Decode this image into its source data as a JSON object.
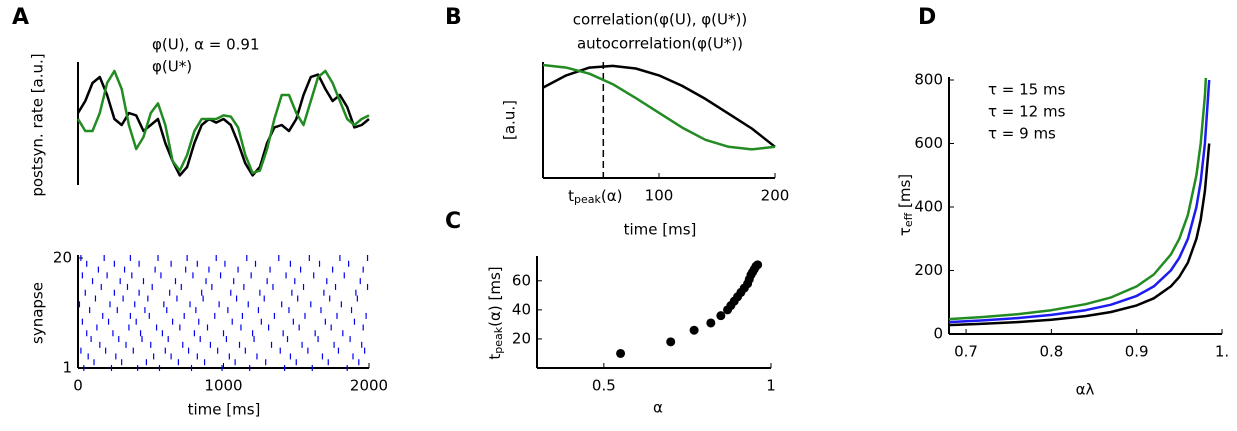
{
  "chart_data": [
    {
      "type": "line",
      "panel_label": "A",
      "ylabel": "postsyn. rate [a.u.]",
      "x": [
        0,
        50,
        100,
        150,
        200,
        250,
        300,
        350,
        400,
        450,
        500,
        550,
        600,
        650,
        700,
        750,
        800,
        850,
        900,
        950,
        1000,
        1050,
        1100,
        1150,
        1200,
        1250,
        1300,
        1350,
        1400,
        1450,
        1500,
        1550,
        1600,
        1650,
        1700,
        1750,
        1800,
        1850,
        1900,
        1950,
        2000
      ],
      "xlim": [
        0,
        2000
      ],
      "ylim": [
        0,
        100
      ],
      "series": [
        {
          "name": "φ(U), α = 0.91",
          "color": "#000000",
          "values": [
            60,
            70,
            85,
            90,
            75,
            55,
            50,
            60,
            58,
            45,
            50,
            55,
            35,
            20,
            8,
            15,
            35,
            50,
            55,
            52,
            55,
            50,
            35,
            18,
            8,
            15,
            35,
            48,
            50,
            45,
            55,
            75,
            90,
            92,
            80,
            70,
            75,
            65,
            48,
            50,
            55
          ]
        },
        {
          "name": "φ(U*)",
          "color": "#228b22",
          "values": [
            55,
            45,
            45,
            60,
            85,
            95,
            80,
            50,
            30,
            40,
            60,
            68,
            50,
            20,
            12,
            25,
            45,
            55,
            55,
            55,
            58,
            57,
            48,
            25,
            10,
            12,
            30,
            55,
            75,
            75,
            60,
            50,
            70,
            90,
            95,
            85,
            70,
            55,
            50,
            55,
            58
          ]
        }
      ]
    },
    {
      "type": "raster",
      "ylabel": "synapse",
      "xlabel": "time [ms]",
      "xlim": [
        0,
        2000
      ],
      "xticks": [
        0,
        1000,
        2000
      ],
      "ylim": [
        1,
        20
      ],
      "yticks": [
        1,
        20
      ],
      "color": "#0000ee",
      "rows": [
        [
          40,
          230,
          410,
          560,
          780,
          990,
          1180,
          1420,
          1610,
          1850
        ],
        [
          110,
          300,
          470,
          690,
          870,
          1080,
          1290,
          1500,
          1720,
          1930
        ],
        [
          70,
          260,
          520,
          640,
          820,
          1040,
          1230,
          1460,
          1680,
          1890
        ],
        [
          20,
          190,
          380,
          600,
          760,
          960,
          1150,
          1390,
          1580,
          1790,
          1970
        ],
        [
          150,
          330,
          500,
          720,
          910,
          1110,
          1330,
          1540,
          1760,
          1950
        ],
        [
          90,
          280,
          440,
          620,
          840,
          1020,
          1210,
          1440,
          1650,
          1870
        ],
        [
          60,
          240,
          430,
          580,
          800,
          1000,
          1200,
          1410,
          1630,
          1820
        ],
        [
          130,
          350,
          540,
          700,
          890,
          1120,
          1310,
          1520,
          1740,
          1960
        ],
        [
          30,
          210,
          400,
          650,
          830,
          1060,
          1260,
          1480,
          1700,
          1900
        ],
        [
          170,
          360,
          490,
          730,
          940,
          1130,
          1350,
          1560,
          1780,
          1980
        ],
        [
          80,
          270,
          460,
          610,
          810,
          1030,
          1240,
          1450,
          1670,
          1880
        ],
        [
          10,
          220,
          390,
          590,
          770,
          970,
          1170,
          1400,
          1600,
          1810
        ],
        [
          120,
          310,
          480,
          680,
          860,
          1090,
          1280,
          1510,
          1730,
          1920
        ],
        [
          50,
          250,
          420,
          630,
          850,
          1050,
          1250,
          1470,
          1690,
          1910
        ],
        [
          160,
          340,
          510,
          710,
          920,
          1140,
          1340,
          1550,
          1770,
          1990
        ],
        [
          100,
          290,
          450,
          670,
          880,
          1070,
          1300,
          1490,
          1710,
          1940
        ],
        [
          30,
          200,
          370,
          570,
          790,
          980,
          1190,
          1430,
          1620,
          1830
        ],
        [
          140,
          320,
          530,
          740,
          900,
          1100,
          1320,
          1530,
          1750,
          1960
        ],
        [
          60,
          250,
          420,
          640,
          820,
          1010,
          1220,
          1460,
          1660,
          1860
        ],
        [
          20,
          180,
          360,
          550,
          750,
          950,
          1160,
          1380,
          1590,
          1800,
          1990
        ]
      ]
    },
    {
      "type": "line",
      "panel_label": "B",
      "ylabel": "[a.u.]",
      "xlabel": "time [ms]",
      "x": [
        0,
        20,
        40,
        60,
        80,
        100,
        120,
        140,
        160,
        180,
        200
      ],
      "xlim": [
        0,
        200
      ],
      "xticks": [
        100,
        200
      ],
      "ylim": [
        0,
        100
      ],
      "marker_x": 52,
      "marker_label": [
        "t",
        "peak",
        "(α)"
      ],
      "series": [
        {
          "name": "correlation(φ(U), φ(U*))",
          "color": "#000000",
          "values": [
            74,
            88,
            97,
            99,
            96,
            88,
            76,
            61,
            44,
            27,
            6
          ]
        },
        {
          "name": "autocorrelation(φ(U*))",
          "color": "#228b22",
          "values": [
            100,
            97,
            90,
            78,
            62,
            45,
            28,
            14,
            6,
            3,
            6
          ]
        }
      ]
    },
    {
      "type": "scatter",
      "panel_label": "C",
      "xlabel": "α",
      "ylabel": [
        "t",
        "peak",
        "(α) [ms]"
      ],
      "x": [
        0.55,
        0.7,
        0.77,
        0.82,
        0.85,
        0.87,
        0.88,
        0.89,
        0.9,
        0.91,
        0.92,
        0.93,
        0.935,
        0.94,
        0.945,
        0.95,
        0.955,
        0.96
      ],
      "values": [
        10,
        18,
        26,
        31,
        36,
        40,
        43,
        46,
        49,
        52,
        55,
        58,
        61,
        64,
        66,
        68,
        70,
        71
      ],
      "xlim": [
        0.3,
        1
      ],
      "xticks": [
        0.5,
        1
      ],
      "ylim": [
        0,
        75
      ],
      "yticks": [
        20,
        40,
        60
      ],
      "color": "#000000"
    },
    {
      "type": "line",
      "panel_label": "D",
      "xlabel": "αλ",
      "ylabel": [
        "τ",
        "eff",
        " [ms]"
      ],
      "x": [
        0.68,
        0.72,
        0.76,
        0.8,
        0.84,
        0.87,
        0.9,
        0.92,
        0.94,
        0.95,
        0.96,
        0.97,
        0.975,
        0.98,
        0.985
      ],
      "xlim": [
        0.68,
        1
      ],
      "xticks": [
        0.7,
        0.8,
        0.9,
        {
          "value": 1,
          "label": "1."
        }
      ],
      "ylim": [
        0,
        800
      ],
      "yticks": [
        0,
        200,
        400,
        600,
        800
      ],
      "series": [
        {
          "name": "τ = 15 ms",
          "color": "#228b22",
          "values": [
            46.9,
            53.6,
            62.5,
            75,
            93.8,
            115.4,
            150,
            187.5,
            250,
            300,
            375,
            500,
            600,
            750,
            1000
          ]
        },
        {
          "name": "τ = 12 ms",
          "color": "#1c1cf0",
          "values": [
            37.5,
            42.9,
            50,
            60,
            75,
            92.3,
            120,
            150,
            200,
            240,
            300,
            400,
            480,
            600,
            800
          ]
        },
        {
          "name": "τ = 9 ms",
          "color": "#000000",
          "values": [
            28.1,
            32.1,
            37.5,
            45,
            56.3,
            69.2,
            90,
            112.5,
            150,
            180,
            225,
            300,
            360,
            450,
            600
          ]
        }
      ]
    }
  ]
}
